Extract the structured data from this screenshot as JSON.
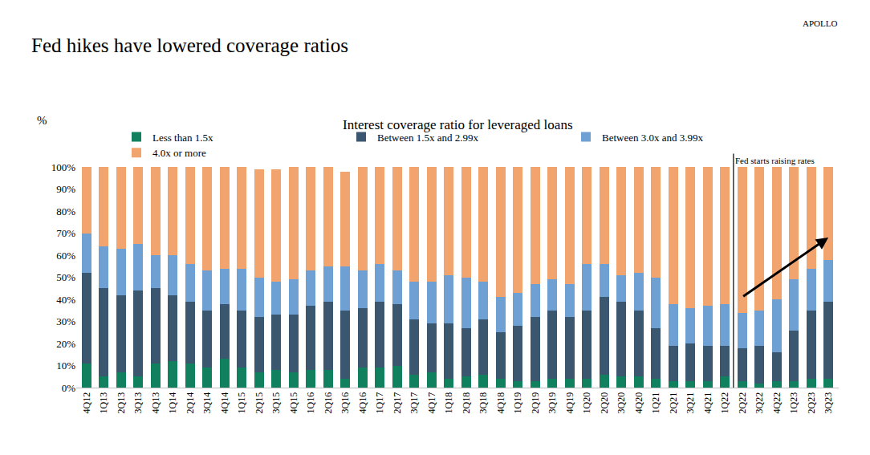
{
  "chart_data": {
    "type": "bar",
    "stacked": true,
    "title": "Fed hikes have lowered coverage ratios",
    "subtitle": "Interest coverage ratio for leveraged loans",
    "y_label": "%",
    "brand": "APOLLO",
    "legend": "top",
    "grid": false,
    "categories": [
      "4Q12",
      "1Q13",
      "2Q13",
      "3Q13",
      "4Q13",
      "1Q14",
      "2Q14",
      "3Q14",
      "4Q14",
      "1Q15",
      "2Q15",
      "3Q15",
      "4Q15",
      "1Q16",
      "2Q16",
      "3Q16",
      "4Q16",
      "1Q17",
      "2Q17",
      "3Q17",
      "4Q17",
      "1Q18",
      "2Q18",
      "3Q18",
      "4Q18",
      "1Q19",
      "2Q19",
      "3Q19",
      "4Q19",
      "1Q20",
      "2Q20",
      "3Q20",
      "4Q20",
      "1Q21",
      "2Q21",
      "3Q21",
      "4Q21",
      "1Q22",
      "2Q22",
      "3Q22",
      "4Q22",
      "1Q23",
      "2Q23",
      "3Q23"
    ],
    "series": [
      {
        "name": "Less than 1.5x",
        "color": "#11805f",
        "values": [
          11,
          5,
          7,
          5,
          11,
          12,
          11,
          9,
          13,
          9,
          7,
          8,
          7,
          8,
          8,
          4,
          9,
          9,
          10,
          6,
          7,
          4,
          5,
          6,
          4,
          3,
          3,
          4,
          4,
          4,
          6,
          5,
          5,
          4,
          3,
          3,
          3,
          5,
          3,
          2,
          3,
          3,
          4,
          4
        ]
      },
      {
        "name": "Between 1.5x and 2.99x",
        "color": "#3b566f",
        "values": [
          41,
          40,
          35,
          39,
          34,
          30,
          28,
          26,
          25,
          26,
          25,
          25,
          26,
          29,
          31,
          31,
          27,
          30,
          28,
          25,
          22,
          25,
          22,
          25,
          21,
          25,
          29,
          31,
          28,
          31,
          35,
          34,
          30,
          23,
          16,
          17,
          16,
          14,
          15,
          17,
          13,
          23,
          31,
          35
        ]
      },
      {
        "name": "Between 3.0x and 3.99x",
        "color": "#6fa0d3",
        "values": [
          18,
          19,
          21,
          21,
          15,
          18,
          17,
          18,
          16,
          19,
          18,
          15,
          16,
          16,
          16,
          20,
          17,
          17,
          15,
          17,
          19,
          22,
          23,
          17,
          16,
          15,
          15,
          14,
          15,
          21,
          15,
          12,
          17,
          23,
          19,
          16,
          18,
          19,
          16,
          16,
          24,
          23,
          19,
          19
        ]
      },
      {
        "name": "4.0x or more",
        "color": "#f2a46f",
        "values": [
          30,
          36,
          37,
          35,
          40,
          40,
          44,
          47,
          46,
          46,
          49,
          51,
          51,
          47,
          45,
          43,
          47,
          44,
          47,
          52,
          52,
          49,
          50,
          52,
          59,
          57,
          53,
          51,
          53,
          44,
          44,
          49,
          48,
          50,
          62,
          64,
          63,
          62,
          66,
          65,
          60,
          51,
          46,
          42
        ]
      }
    ],
    "ylim": [
      0,
      100
    ],
    "yticks": [
      {
        "value": 0,
        "label": "0%"
      },
      {
        "value": 10,
        "label": "10%"
      },
      {
        "value": 20,
        "label": "20%"
      },
      {
        "value": 30,
        "label": "30%"
      },
      {
        "value": 40,
        "label": "40%"
      },
      {
        "value": 50,
        "label": "50%"
      },
      {
        "value": 60,
        "label": "60%"
      },
      {
        "value": 70,
        "label": "70%"
      },
      {
        "value": 80,
        "label": "80%"
      },
      {
        "value": 90,
        "label": "90%"
      },
      {
        "value": 100,
        "label": "100%"
      }
    ],
    "annotations": [
      {
        "text": "Fed starts raising rates",
        "x": "2Q22"
      }
    ],
    "arrow": {
      "x": [
        "2Q22",
        "3Q23"
      ],
      "y": [
        41,
        68
      ]
    }
  }
}
